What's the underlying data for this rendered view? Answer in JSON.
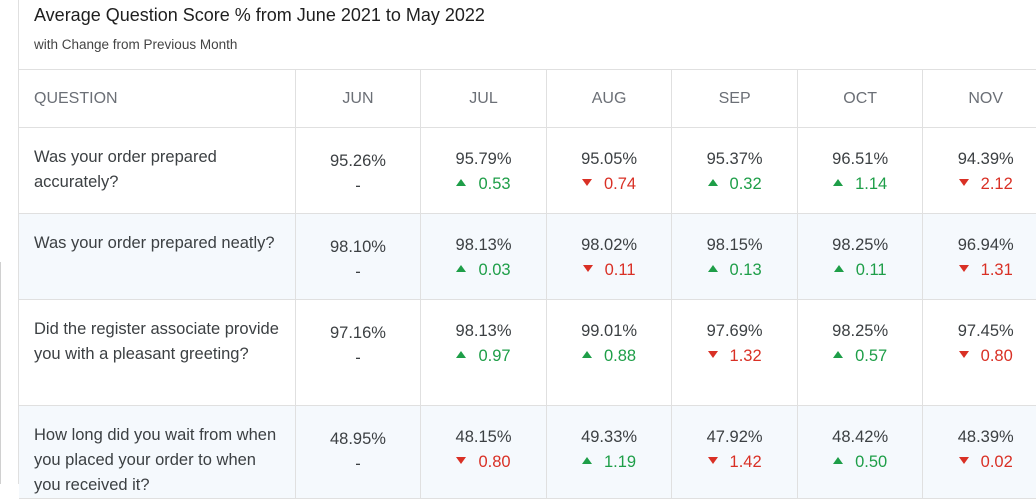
{
  "chart_data": {
    "type": "table",
    "title": "Average Question Score % from June 2021 to May 2022",
    "subtitle": "with Change from Previous Month",
    "question_header": "QUESTION",
    "columns": [
      "JUN",
      "JUL",
      "AUG",
      "SEP",
      "OCT",
      "NOV"
    ],
    "rows": [
      {
        "question": "Was your order prepared accurately?",
        "cells": [
          {
            "value": "95.26%",
            "change": "-",
            "dir": "none"
          },
          {
            "value": "95.79%",
            "change": "0.53",
            "dir": "up"
          },
          {
            "value": "95.05%",
            "change": "0.74",
            "dir": "down"
          },
          {
            "value": "95.37%",
            "change": "0.32",
            "dir": "up"
          },
          {
            "value": "96.51%",
            "change": "1.14",
            "dir": "up"
          },
          {
            "value": "94.39%",
            "change": "2.12",
            "dir": "down"
          }
        ]
      },
      {
        "question": "Was your order prepared neatly?",
        "cells": [
          {
            "value": "98.10%",
            "change": "-",
            "dir": "none"
          },
          {
            "value": "98.13%",
            "change": "0.03",
            "dir": "up"
          },
          {
            "value": "98.02%",
            "change": "0.11",
            "dir": "down"
          },
          {
            "value": "98.15%",
            "change": "0.13",
            "dir": "up"
          },
          {
            "value": "98.25%",
            "change": "0.11",
            "dir": "up"
          },
          {
            "value": "96.94%",
            "change": "1.31",
            "dir": "down"
          }
        ]
      },
      {
        "question": "Did the register associate provide you with a pleasant greeting?",
        "cells": [
          {
            "value": "97.16%",
            "change": "-",
            "dir": "none"
          },
          {
            "value": "98.13%",
            "change": "0.97",
            "dir": "up"
          },
          {
            "value": "99.01%",
            "change": "0.88",
            "dir": "up"
          },
          {
            "value": "97.69%",
            "change": "1.32",
            "dir": "down"
          },
          {
            "value": "98.25%",
            "change": "0.57",
            "dir": "up"
          },
          {
            "value": "97.45%",
            "change": "0.80",
            "dir": "down"
          }
        ]
      },
      {
        "question": "How long did you wait from when you placed your order to when you received it?",
        "cells": [
          {
            "value": "48.95%",
            "change": "-",
            "dir": "none"
          },
          {
            "value": "48.15%",
            "change": "0.80",
            "dir": "down"
          },
          {
            "value": "49.33%",
            "change": "1.19",
            "dir": "up"
          },
          {
            "value": "47.92%",
            "change": "1.42",
            "dir": "down"
          },
          {
            "value": "48.42%",
            "change": "0.50",
            "dir": "up"
          },
          {
            "value": "48.39%",
            "change": "0.02",
            "dir": "down"
          }
        ]
      }
    ],
    "colors": {
      "up": "#1e9e48",
      "down": "#d93025",
      "row_alt_bg": "#f5f9fd"
    }
  }
}
